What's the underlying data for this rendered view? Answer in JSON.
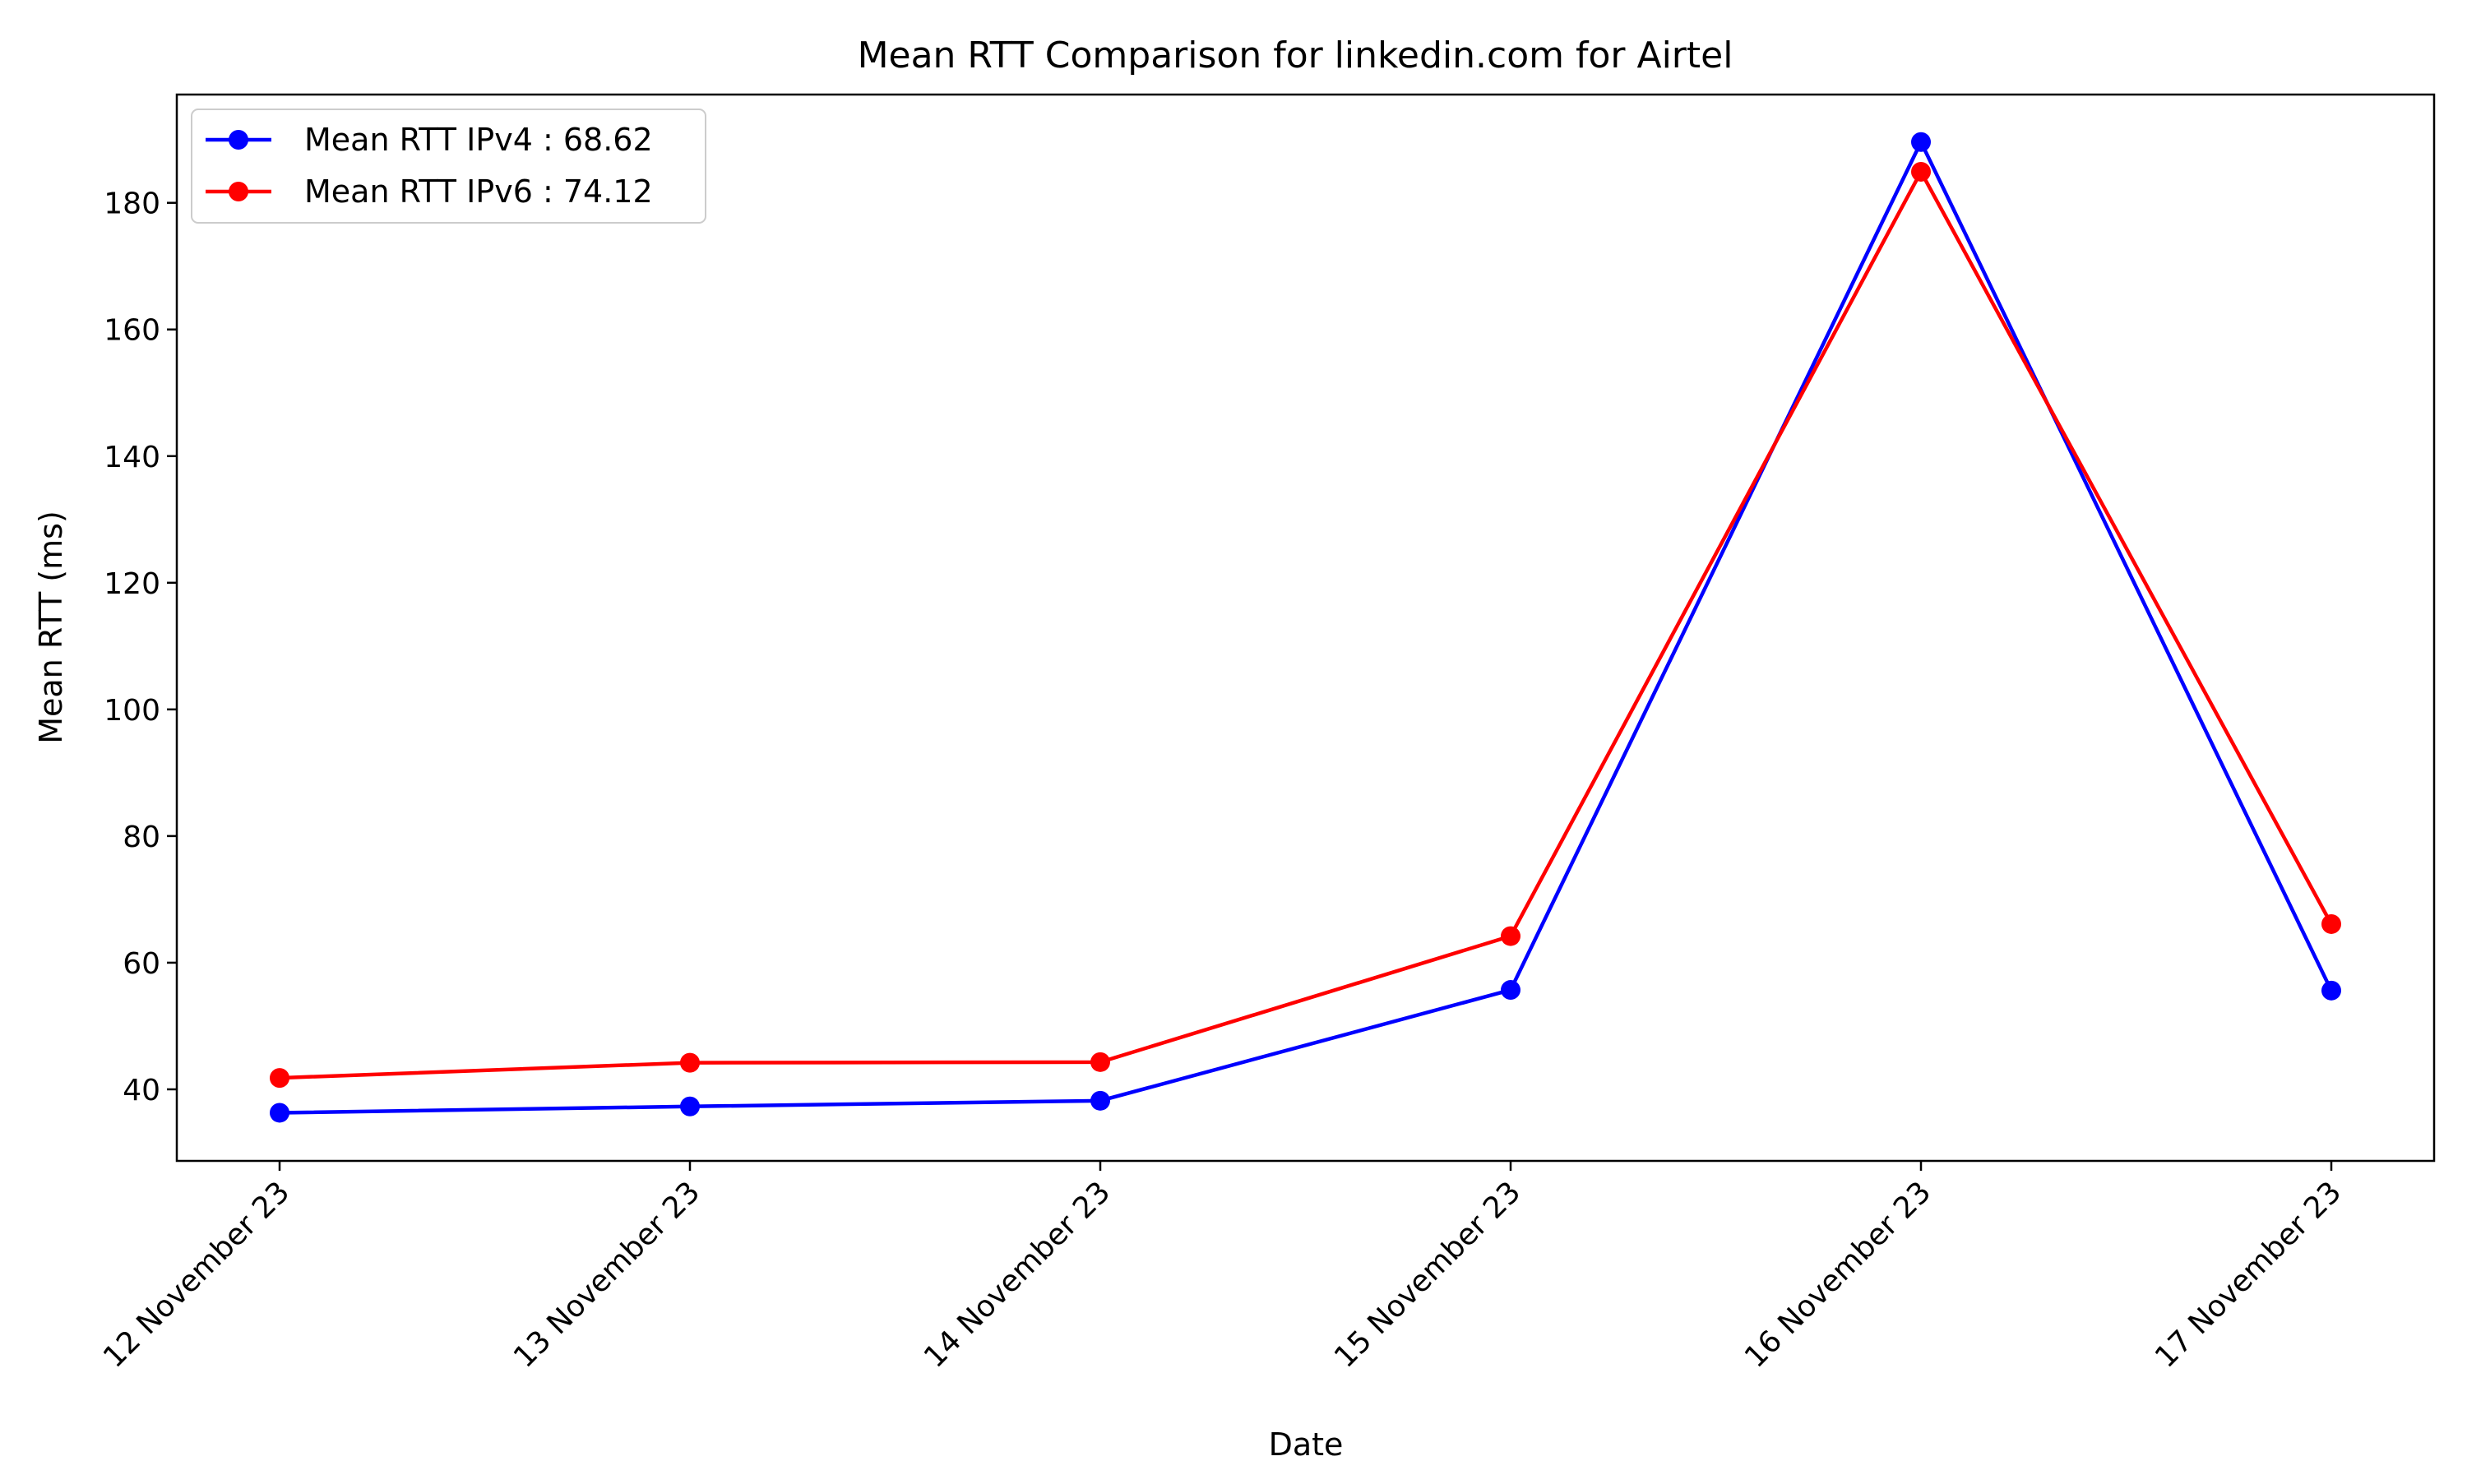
{
  "chart_data": {
    "type": "line",
    "title": "Mean RTT Comparison for linkedin.com for Airtel",
    "xlabel": "Date",
    "ylabel": "Mean RTT (ms)",
    "categories": [
      "12 November 23",
      "13 November 23",
      "14 November 23",
      "15 November 23",
      "16 November 23",
      "17 November 23"
    ],
    "ylim": [
      28.7,
      197.1
    ],
    "yticks": [
      40,
      60,
      80,
      100,
      120,
      140,
      160,
      180
    ],
    "grid": false,
    "legend_position": "top-left",
    "series": [
      {
        "name": "Mean RTT IPv4 : 68.62",
        "color": "#0000ff",
        "values": [
          36.3,
          37.3,
          38.2,
          55.7,
          189.6,
          55.6
        ]
      },
      {
        "name": "Mean RTT IPv6 : 74.12",
        "color": "#ff0000",
        "values": [
          41.8,
          44.2,
          44.3,
          64.2,
          184.9,
          66.1
        ]
      }
    ]
  }
}
